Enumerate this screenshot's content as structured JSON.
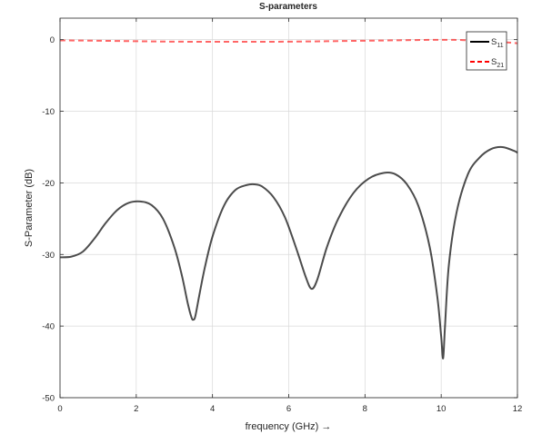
{
  "chart_data": {
    "type": "line",
    "title": "S-parameters",
    "xlabel": "frequency (GHz) →",
    "ylabel": "S-Parameter (dB)",
    "xlim": [
      0,
      12
    ],
    "ylim": [
      -50,
      3
    ],
    "xticks": [
      0,
      2,
      4,
      6,
      8,
      10,
      12
    ],
    "yticks": [
      0,
      -10,
      -20,
      -30,
      -40,
      -50
    ],
    "grid": true,
    "legend_position": "top-right",
    "series": [
      {
        "name": "S11",
        "legend_main": "S",
        "legend_sub": "11",
        "color": "#000000",
        "style": "solid",
        "x": [
          0,
          0.3,
          0.6,
          0.9,
          1.2,
          1.5,
          1.8,
          2.1,
          2.4,
          2.7,
          3.0,
          3.2,
          3.35,
          3.45,
          3.5,
          3.55,
          3.65,
          3.8,
          4.0,
          4.3,
          4.6,
          4.9,
          5.1,
          5.3,
          5.6,
          5.9,
          6.2,
          6.45,
          6.6,
          6.75,
          7.0,
          7.3,
          7.7,
          8.1,
          8.5,
          8.8,
          9.1,
          9.4,
          9.7,
          9.9,
          10.0,
          10.05,
          10.1,
          10.2,
          10.4,
          10.7,
          11.0,
          11.3,
          11.6,
          11.9,
          12.0
        ],
        "y": [
          -30.4,
          -30.3,
          -29.6,
          -27.8,
          -25.6,
          -23.8,
          -22.8,
          -22.6,
          -23.1,
          -25.0,
          -29.0,
          -33.0,
          -36.8,
          -38.8,
          -39.1,
          -38.6,
          -35.8,
          -31.8,
          -27.5,
          -23.2,
          -21.0,
          -20.3,
          -20.2,
          -20.5,
          -22.0,
          -24.8,
          -29.2,
          -33.2,
          -34.8,
          -33.5,
          -29.0,
          -25.0,
          -21.4,
          -19.4,
          -18.6,
          -18.8,
          -20.2,
          -23.2,
          -29.0,
          -36.0,
          -41.5,
          -44.5,
          -40.0,
          -31.5,
          -24.2,
          -18.8,
          -16.5,
          -15.3,
          -15.0,
          -15.5,
          -15.8
        ]
      },
      {
        "name": "S21",
        "legend_main": "S",
        "legend_sub": "21",
        "color": "#ff0000",
        "style": "dashed",
        "x": [
          0,
          1,
          2,
          3,
          4,
          5,
          6,
          7,
          8,
          9,
          10,
          10.5,
          11,
          11.5,
          12
        ],
        "y": [
          -0.1,
          -0.15,
          -0.22,
          -0.28,
          -0.3,
          -0.3,
          -0.28,
          -0.22,
          -0.15,
          -0.08,
          -0.02,
          -0.05,
          -0.15,
          -0.3,
          -0.5
        ]
      }
    ]
  }
}
